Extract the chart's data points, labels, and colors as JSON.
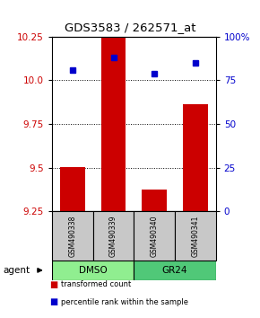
{
  "title": "GDS3583 / 262571_at",
  "samples": [
    "GSM490338",
    "GSM490339",
    "GSM490340",
    "GSM490341"
  ],
  "red_values": [
    9.503,
    10.26,
    9.375,
    9.862
  ],
  "blue_values": [
    81,
    88,
    79,
    85
  ],
  "ylim_left": [
    9.25,
    10.25
  ],
  "ylim_right": [
    0,
    100
  ],
  "yticks_left": [
    9.25,
    9.5,
    9.75,
    10.0,
    10.25
  ],
  "yticks_right": [
    0,
    25,
    50,
    75,
    100
  ],
  "bar_color": "#CC0000",
  "blue_color": "#0000CC",
  "bar_width": 0.6,
  "agent_label": "agent",
  "legend_red": "transformed count",
  "legend_blue": "percentile rank within the sample",
  "label_color_left": "#CC0000",
  "label_color_right": "#0000CC",
  "dmso_color": "#90EE90",
  "gr24_color": "#50C878",
  "sample_box_color": "#C8C8C8",
  "grid_yticks": [
    9.5,
    9.75,
    10.0
  ]
}
